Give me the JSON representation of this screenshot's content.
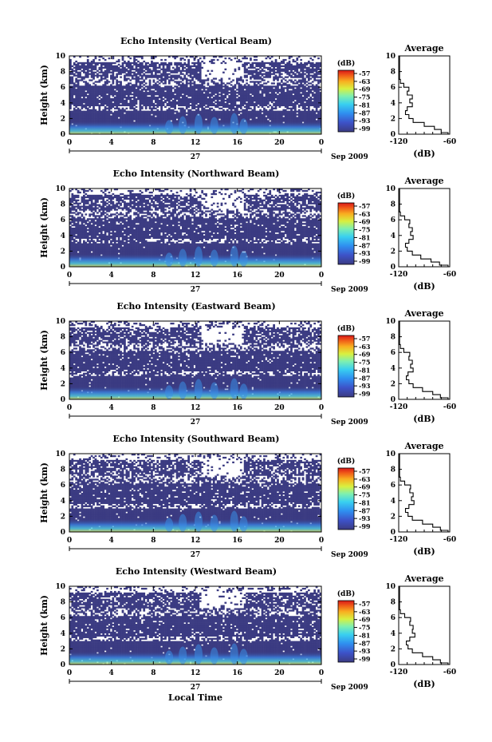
{
  "chart_data": [
    {
      "type": "heatmap",
      "title": "Echo Intensity (Vertical Beam)",
      "ylabel": "Height (km)",
      "xlabel": "",
      "x_ticks": [
        "0",
        "4",
        "8",
        "12",
        "16",
        "20",
        "0"
      ],
      "y_ticks": [
        "0",
        "2",
        "4",
        "6",
        "8",
        "10"
      ],
      "xlim": [
        0,
        24
      ],
      "ylim": [
        0,
        10
      ],
      "date_day": "27",
      "date_month_year": "Sep 2009",
      "colorbar": {
        "unit": "(dB)",
        "ticks": [
          "-57",
          "-63",
          "-69",
          "-75",
          "-81",
          "-87",
          "-93",
          "-99"
        ]
      },
      "profile": {
        "title": "Average",
        "xlabel": "(dB)",
        "x_ticks": [
          "-120",
          "-60"
        ],
        "xlim": [
          -120,
          -60
        ],
        "ylim": [
          0,
          10
        ],
        "heights": [
          0.2,
          0.6,
          1.0,
          1.5,
          2.0,
          2.5,
          3.0,
          3.5,
          4.0,
          4.5,
          5.0,
          5.5,
          6.0,
          6.5,
          7.0,
          8.0,
          9.0,
          10.0
        ],
        "values": [
          -62,
          -70,
          -78,
          -90,
          -103,
          -108,
          -112,
          -110,
          -104,
          -107,
          -104,
          -110,
          -108,
          -114,
          -118,
          -119,
          -119,
          -119
        ]
      }
    },
    {
      "type": "heatmap",
      "title": "Echo Intensity (Northward Beam)",
      "ylabel": "Height (km)",
      "xlabel": "",
      "x_ticks": [
        "0",
        "4",
        "8",
        "12",
        "16",
        "20",
        "0"
      ],
      "y_ticks": [
        "0",
        "2",
        "4",
        "6",
        "8",
        "10"
      ],
      "xlim": [
        0,
        24
      ],
      "ylim": [
        0,
        10
      ],
      "date_day": "27",
      "date_month_year": "Sep 2009",
      "colorbar": {
        "unit": "(dB)",
        "ticks": [
          "-57",
          "-63",
          "-69",
          "-75",
          "-81",
          "-87",
          "-93",
          "-99"
        ]
      },
      "profile": {
        "title": "Average",
        "xlabel": "(dB)",
        "x_ticks": [
          "-120",
          "-60"
        ],
        "xlim": [
          -120,
          -60
        ],
        "ylim": [
          0,
          10
        ],
        "heights": [
          0.2,
          0.6,
          1.0,
          1.5,
          2.0,
          2.5,
          3.0,
          3.5,
          4.0,
          4.5,
          5.0,
          5.5,
          6.0,
          6.5,
          7.0,
          8.0,
          9.0,
          10.0
        ],
        "values": [
          -62,
          -72,
          -82,
          -94,
          -104,
          -110,
          -112,
          -108,
          -103,
          -106,
          -104,
          -108,
          -107,
          -113,
          -118,
          -119,
          -119,
          -119
        ]
      }
    },
    {
      "type": "heatmap",
      "title": "Echo Intensity (Eastward Beam)",
      "ylabel": "Height (km)",
      "xlabel": "",
      "x_ticks": [
        "0",
        "4",
        "8",
        "12",
        "16",
        "20",
        "0"
      ],
      "y_ticks": [
        "0",
        "2",
        "4",
        "6",
        "8",
        "10"
      ],
      "xlim": [
        0,
        24
      ],
      "ylim": [
        0,
        10
      ],
      "date_day": "27",
      "date_month_year": "Sep 2009",
      "colorbar": {
        "unit": "(dB)",
        "ticks": [
          "-57",
          "-63",
          "-69",
          "-75",
          "-81",
          "-87",
          "-93",
          "-99"
        ]
      },
      "profile": {
        "title": "Average",
        "xlabel": "(dB)",
        "x_ticks": [
          "-120",
          "-60"
        ],
        "xlim": [
          -120,
          -60
        ],
        "ylim": [
          0,
          10
        ],
        "heights": [
          0.2,
          0.6,
          1.0,
          1.5,
          2.0,
          2.5,
          3.0,
          3.5,
          4.0,
          4.5,
          5.0,
          5.5,
          6.0,
          6.5,
          7.0,
          8.0,
          9.0,
          10.0
        ],
        "values": [
          -62,
          -71,
          -80,
          -92,
          -103,
          -108,
          -111,
          -109,
          -103,
          -106,
          -104,
          -108,
          -107,
          -114,
          -118,
          -119,
          -119,
          -119
        ]
      }
    },
    {
      "type": "heatmap",
      "title": "Echo Intensity (Southward Beam)",
      "ylabel": "Height (km)",
      "xlabel": "",
      "x_ticks": [
        "0",
        "4",
        "8",
        "12",
        "16",
        "20",
        "0"
      ],
      "y_ticks": [
        "0",
        "2",
        "4",
        "6",
        "8",
        "10"
      ],
      "xlim": [
        0,
        24
      ],
      "ylim": [
        0,
        10
      ],
      "date_day": "27",
      "date_month_year": "Sep 2009",
      "colorbar": {
        "unit": "(dB)",
        "ticks": [
          "-57",
          "-63",
          "-69",
          "-75",
          "-81",
          "-87",
          "-93",
          "-99"
        ]
      },
      "profile": {
        "title": "Average",
        "xlabel": "(dB)",
        "x_ticks": [
          "-120",
          "-60"
        ],
        "xlim": [
          -120,
          -60
        ],
        "ylim": [
          0,
          10
        ],
        "heights": [
          0.2,
          0.6,
          1.0,
          1.5,
          2.0,
          2.5,
          3.0,
          3.5,
          4.0,
          4.5,
          5.0,
          5.5,
          6.0,
          6.5,
          7.0,
          8.0,
          9.0,
          10.0
        ],
        "values": [
          -62,
          -71,
          -80,
          -92,
          -104,
          -109,
          -112,
          -108,
          -102,
          -105,
          -103,
          -107,
          -106,
          -113,
          -118,
          -119,
          -119,
          -119
        ]
      }
    },
    {
      "type": "heatmap",
      "title": "Echo Intensity (Westward Beam)",
      "ylabel": "Height (km)",
      "xlabel": "Local Time",
      "x_ticks": [
        "0",
        "4",
        "8",
        "12",
        "16",
        "20",
        "0"
      ],
      "y_ticks": [
        "0",
        "2",
        "4",
        "6",
        "8",
        "10"
      ],
      "xlim": [
        0,
        24
      ],
      "ylim": [
        0,
        10
      ],
      "date_day": "27",
      "date_month_year": "Sep 2009",
      "colorbar": {
        "unit": "(dB)",
        "ticks": [
          "-57",
          "-63",
          "-69",
          "-75",
          "-81",
          "-87",
          "-93",
          "-99"
        ]
      },
      "profile": {
        "title": "Average",
        "xlabel": "(dB)",
        "x_ticks": [
          "-120",
          "-60"
        ],
        "xlim": [
          -120,
          -60
        ],
        "ylim": [
          0,
          10
        ],
        "heights": [
          0.2,
          0.6,
          1.0,
          1.5,
          2.0,
          2.5,
          3.0,
          3.5,
          4.0,
          4.5,
          5.0,
          5.5,
          6.0,
          6.5,
          7.0,
          8.0,
          9.0,
          10.0
        ],
        "values": [
          -62,
          -71,
          -80,
          -92,
          -104,
          -109,
          -111,
          -107,
          -101,
          -104,
          -103,
          -107,
          -106,
          -113,
          -118,
          -119,
          -119,
          -119
        ]
      }
    }
  ]
}
